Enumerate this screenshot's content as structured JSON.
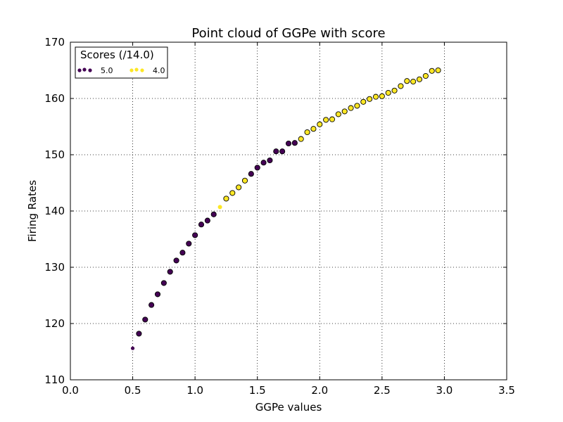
{
  "chart_data": {
    "type": "scatter",
    "title": "Point cloud of GGPe with score",
    "xlabel": "GGPe values",
    "ylabel": "Firing Rates",
    "xlim": [
      0.0,
      3.5
    ],
    "ylim": [
      110,
      170
    ],
    "xticks": [
      "0.0",
      "0.5",
      "1.0",
      "1.5",
      "2.0",
      "2.5",
      "3.0",
      "3.5"
    ],
    "xtick_values": [
      0.0,
      0.5,
      1.0,
      1.5,
      2.0,
      2.5,
      3.0,
      3.5
    ],
    "yticks": [
      "110",
      "120",
      "130",
      "140",
      "150",
      "160",
      "170"
    ],
    "ytick_values": [
      110,
      120,
      130,
      140,
      150,
      160,
      170
    ],
    "grid": true,
    "legend": {
      "title": "Scores (/14.0)",
      "placement": "top-left",
      "entries": [
        {
          "label": "5.0",
          "color": "#440154"
        },
        {
          "label": "4.0",
          "color": "#fde725"
        }
      ]
    },
    "series": [
      {
        "name": "5.0",
        "color": "#440154",
        "x": [
          0.5,
          0.55,
          0.6,
          0.65,
          0.7,
          0.75,
          0.8,
          0.85,
          0.9,
          0.95,
          1.0,
          1.05,
          1.1,
          1.15,
          1.45,
          1.5,
          1.55,
          1.6,
          1.65,
          1.7,
          1.75,
          1.8
        ],
        "y": [
          115.6,
          118.2,
          120.7,
          123.3,
          125.2,
          127.2,
          129.2,
          131.2,
          132.6,
          134.2,
          135.7,
          137.6,
          138.3,
          139.4,
          146.6,
          147.7,
          148.6,
          149.0,
          150.6,
          150.6,
          152.0,
          152.1
        ]
      },
      {
        "name": "4.0",
        "color": "#fde725",
        "x": [
          1.2,
          1.25,
          1.3,
          1.35,
          1.4,
          1.85,
          1.9,
          1.95,
          2.0,
          2.05,
          2.1,
          2.15,
          2.2,
          2.25,
          2.3,
          2.35,
          2.4,
          2.45,
          2.5,
          2.55,
          2.6,
          2.65,
          2.7,
          2.75,
          2.8,
          2.85,
          2.9,
          2.95
        ],
        "y": [
          140.7,
          142.2,
          143.2,
          144.2,
          145.4,
          152.8,
          154.0,
          154.6,
          155.4,
          156.2,
          156.3,
          157.2,
          157.7,
          158.3,
          158.7,
          159.4,
          159.9,
          160.3,
          160.4,
          161.0,
          161.4,
          162.2,
          163.1,
          163.0,
          163.4,
          164.0,
          164.9,
          165.0
        ]
      }
    ]
  }
}
